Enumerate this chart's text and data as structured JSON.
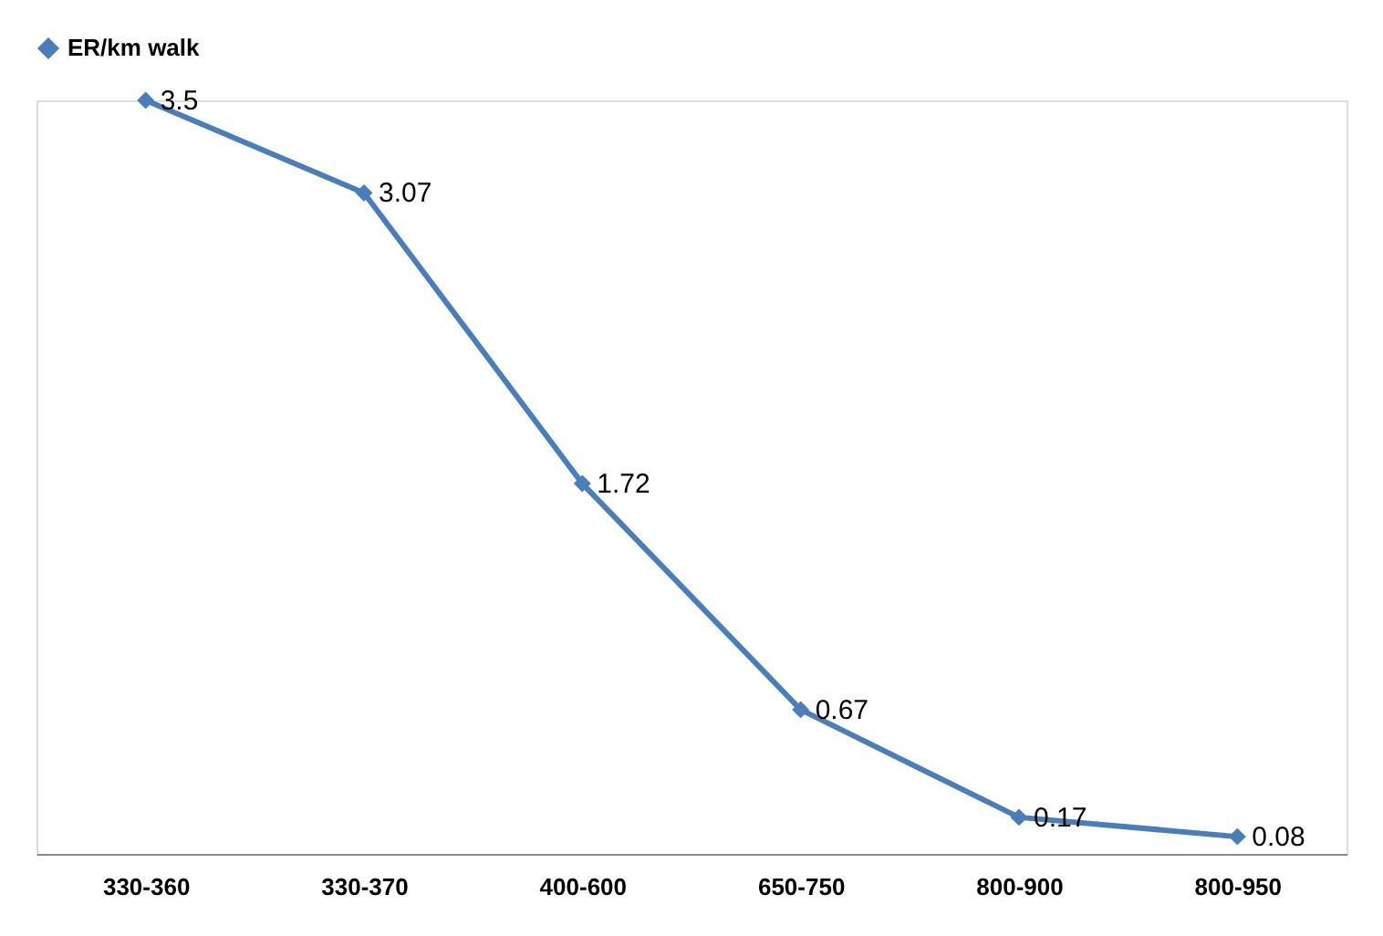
{
  "chart_data": {
    "type": "line",
    "categories": [
      "330-360",
      "330-370",
      "400-600",
      "650-750",
      "800-900",
      "800-950"
    ],
    "series": [
      {
        "name": "ER/km walk",
        "color": "#4a7ebb",
        "values": [
          3.5,
          3.07,
          1.72,
          0.67,
          0.17,
          0.08
        ]
      }
    ],
    "data_labels": true,
    "marker": "diamond",
    "legend": "top",
    "grid": false,
    "tick_labels": "x"
  }
}
